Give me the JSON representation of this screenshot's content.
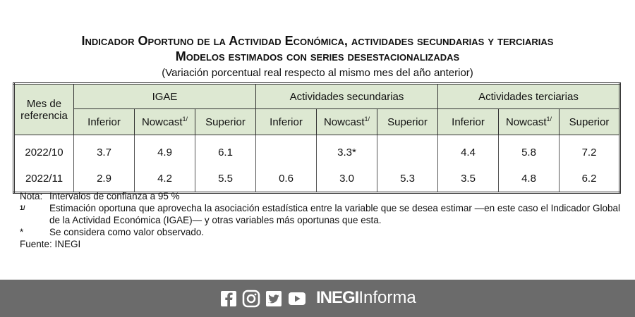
{
  "header": {
    "title": "Indicador Oportuno de la Actividad Económica, actividades secundarias y terciarias",
    "subtitle": "Modelos estimados con series desestacionalizadas",
    "note": "(Variación porcentual real respecto al mismo mes del año anterior)"
  },
  "table": {
    "corner": "Mes de referencia",
    "groups": [
      "IGAE",
      "Actividades secundarias",
      "Actividades terciarias"
    ],
    "columns": [
      {
        "label": "Inferior"
      },
      {
        "label": "Nowcast",
        "sup": "1/"
      },
      {
        "label": "Superior"
      },
      {
        "label": "Inferior"
      },
      {
        "label": "Nowcast",
        "sup": "1/"
      },
      {
        "label": "Superior"
      },
      {
        "label": "Inferior"
      },
      {
        "label": "Nowcast",
        "sup": "1/"
      },
      {
        "label": "Superior"
      }
    ],
    "rows": [
      [
        "2022/10",
        "3.7",
        "4.9",
        "6.1",
        null,
        "3.3*",
        null,
        "4.4",
        "5.8",
        "7.2"
      ],
      [
        "2022/11",
        "2.9",
        "4.2",
        "5.5",
        "0.6",
        "3.0",
        "5.3",
        "3.5",
        "4.8",
        "6.2"
      ]
    ]
  },
  "notes": [
    {
      "mark": "Nota:",
      "text": "Intervalos de confianza a 95 %"
    },
    {
      "mark": "1/",
      "text": "Estimación oportuna que aprovecha la asociación estadística entre la variable que se desea estimar —en este caso el Indicador Global de la Actividad Económica (IGAE)— y otras variables más oportunas que esta."
    },
    {
      "mark": "*",
      "text": "Se considera como valor observado."
    }
  ],
  "source": "Fuente: INEGI",
  "footer": {
    "brand": "INEGI",
    "suffix": "Informa"
  }
}
